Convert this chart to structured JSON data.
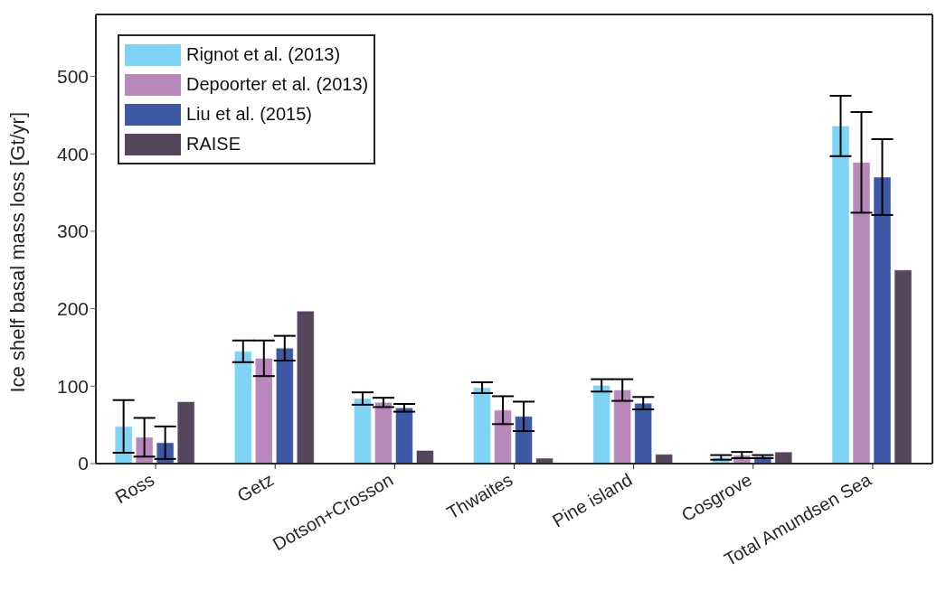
{
  "chart_data": {
    "type": "bar",
    "ylabel": "Ice shelf basal mass loss [Gt/yr]",
    "categories": [
      "Ross",
      "Getz",
      "Dotson+Crosson",
      "Thwaites",
      "Pine island",
      "Cosgrove",
      "Total Amundsen Sea"
    ],
    "series": [
      {
        "name": "Rignot et al. (2013)",
        "color": "#7fd3f4",
        "values": [
          48,
          145,
          84,
          98,
          101,
          8,
          436
        ],
        "errors": [
          34,
          14,
          8,
          7,
          8,
          3,
          39
        ]
      },
      {
        "name": "Depoorter et al. (2013)",
        "color": "#b887bb",
        "values": [
          34,
          136,
          79,
          69,
          95,
          11,
          389
        ],
        "errors": [
          25,
          23,
          6,
          18,
          14,
          4,
          65
        ]
      },
      {
        "name": "Liu et al. (2015)",
        "color": "#3d59a6",
        "values": [
          27,
          149,
          72,
          61,
          78,
          9,
          370
        ],
        "errors": [
          21,
          16,
          5,
          19,
          8,
          2,
          49
        ]
      },
      {
        "name": "RAISE",
        "color": "#55465b",
        "values": [
          80,
          197,
          17,
          7,
          12,
          15,
          250
        ]
      }
    ],
    "ylim": [
      0,
      580
    ],
    "yticks": [
      0,
      100,
      200,
      300,
      400,
      500
    ],
    "grid": false,
    "legend": "top left"
  }
}
